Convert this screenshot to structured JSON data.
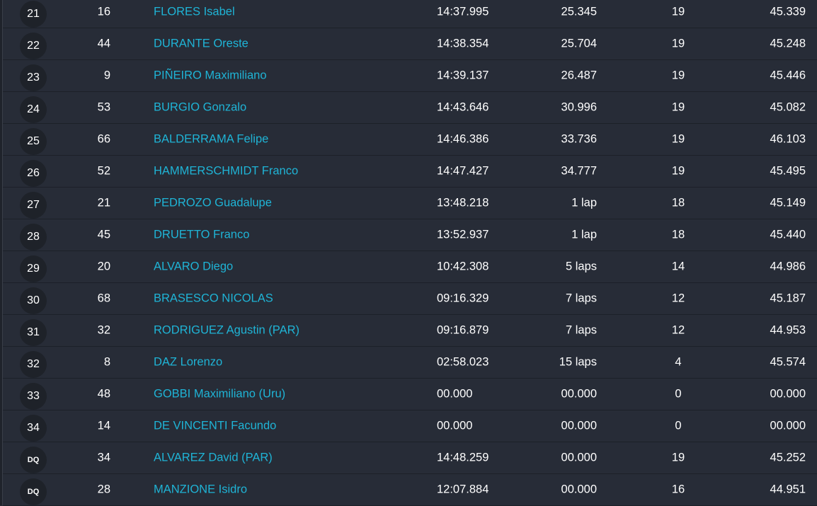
{
  "colors": {
    "background": "#272c37",
    "name_link": "#1fb4d6",
    "position_badge": "#1e2229"
  },
  "rows": [
    {
      "pos": "21",
      "number": "16",
      "name": "FLORES Isabel",
      "time": "14:37.995",
      "gap": "25.345",
      "laps": "19",
      "best": "45.339"
    },
    {
      "pos": "22",
      "number": "44",
      "name": "DURANTE Oreste",
      "time": "14:38.354",
      "gap": "25.704",
      "laps": "19",
      "best": "45.248"
    },
    {
      "pos": "23",
      "number": "9",
      "name": "PIÑEIRO Maximiliano",
      "time": "14:39.137",
      "gap": "26.487",
      "laps": "19",
      "best": "45.446"
    },
    {
      "pos": "24",
      "number": "53",
      "name": "BURGIO Gonzalo",
      "time": "14:43.646",
      "gap": "30.996",
      "laps": "19",
      "best": "45.082"
    },
    {
      "pos": "25",
      "number": "66",
      "name": "BALDERRAMA Felipe",
      "time": "14:46.386",
      "gap": "33.736",
      "laps": "19",
      "best": "46.103"
    },
    {
      "pos": "26",
      "number": "52",
      "name": "HAMMERSCHMIDT Franco",
      "time": "14:47.427",
      "gap": "34.777",
      "laps": "19",
      "best": "45.495"
    },
    {
      "pos": "27",
      "number": "21",
      "name": "PEDROZO Guadalupe",
      "time": "13:48.218",
      "gap": "1 lap",
      "laps": "18",
      "best": "45.149"
    },
    {
      "pos": "28",
      "number": "45",
      "name": "DRUETTO Franco",
      "time": "13:52.937",
      "gap": "1 lap",
      "laps": "18",
      "best": "45.440"
    },
    {
      "pos": "29",
      "number": "20",
      "name": "ALVARO Diego",
      "time": "10:42.308",
      "gap": "5 laps",
      "laps": "14",
      "best": "44.986"
    },
    {
      "pos": "30",
      "number": "68",
      "name": "BRASESCO NICOLAS",
      "time": "09:16.329",
      "gap": "7 laps",
      "laps": "12",
      "best": "45.187"
    },
    {
      "pos": "31",
      "number": "32",
      "name": "RODRIGUEZ Agustin (PAR)",
      "time": "09:16.879",
      "gap": "7 laps",
      "laps": "12",
      "best": "44.953"
    },
    {
      "pos": "32",
      "number": "8",
      "name": "DAZ Lorenzo",
      "time": "02:58.023",
      "gap": "15 laps",
      "laps": "4",
      "best": "45.574"
    },
    {
      "pos": "33",
      "number": "48",
      "name": "GOBBI Maximiliano (Uru)",
      "time": "00.000",
      "gap": "00.000",
      "laps": "0",
      "best": "00.000"
    },
    {
      "pos": "34",
      "number": "14",
      "name": "DE VINCENTI Facundo",
      "time": "00.000",
      "gap": "00.000",
      "laps": "0",
      "best": "00.000"
    },
    {
      "pos": "DQ",
      "number": "34",
      "name": "ALVAREZ David (PAR)",
      "time": "14:48.259",
      "gap": "00.000",
      "laps": "19",
      "best": "45.252"
    },
    {
      "pos": "DQ",
      "number": "28",
      "name": "MANZIONE Isidro",
      "time": "12:07.884",
      "gap": "00.000",
      "laps": "16",
      "best": "44.951"
    }
  ]
}
